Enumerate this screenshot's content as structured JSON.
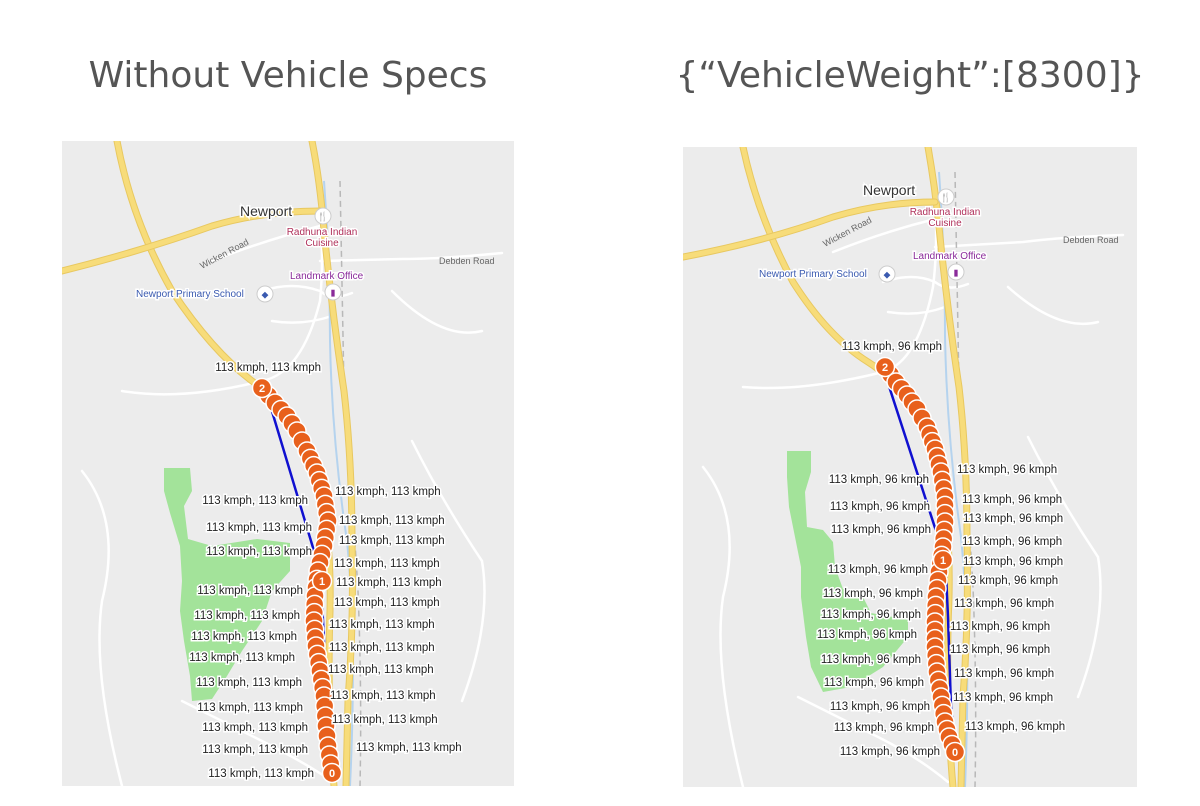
{
  "colors": {
    "land": "#ececec",
    "park": "#a3e39a",
    "major_road": "#f7dc7a",
    "minor_road": "#ffffff",
    "route_line": "#1010d0",
    "marker": "#e8601c",
    "water": "#b5d3ee",
    "poi_text": "#b0305a",
    "school_text": "#3a5ab0",
    "landmark_text": "#8a2a9a"
  },
  "left": {
    "title": "Without Vehicle Specs",
    "speed_label": "113 kmph, 113 kmph",
    "places": {
      "town": "Newport",
      "restaurant_line1": "Radhuna Indian",
      "restaurant_line2": "Cuisine",
      "landmark": "Landmark Office",
      "school": "Newport Primary School",
      "road1": "Wicken Road",
      "road2": "Debden Road"
    },
    "start_marker": "2",
    "mid_marker": "1",
    "end_marker": "0"
  },
  "right": {
    "title": "{“VehicleWeight”:[8300]}",
    "speed_label": "113 kmph, 96 kmph",
    "places": {
      "town": "Newport",
      "restaurant_line1": "Radhuna Indian",
      "restaurant_line2": "Cuisine",
      "landmark": "Landmark Office",
      "school": "Newport Primary School",
      "road1": "Wicken Road",
      "road2": "Debden Road"
    },
    "start_marker": "2",
    "mid_marker": "1",
    "end_marker": "0"
  }
}
